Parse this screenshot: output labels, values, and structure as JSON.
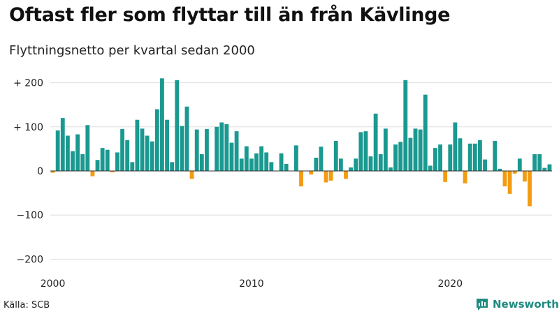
{
  "title": "Oftast fler som flyttar till än från Kävlinge",
  "subtitle": "Flyttningsnetto per kvartal sedan 2000",
  "source": "Källa: SCB",
  "brand": "Newsworthy",
  "colors": {
    "positive": "#1a9990",
    "negative": "#f39c12",
    "grid": "#dddddd",
    "zero": "#333333",
    "brand": "#1f8a80"
  },
  "chart_data": {
    "type": "bar",
    "title": "Oftast fler som flyttar till än från Kävlinge",
    "subtitle": "Flyttningsnetto per kvartal sedan 2000",
    "xlabel": "",
    "ylabel": "",
    "ylim": [
      -200,
      220
    ],
    "yticks": [
      200,
      100,
      0,
      -100,
      -200
    ],
    "ytick_labels": [
      "+ 200",
      "+ 100",
      "0",
      "−100",
      "−200"
    ],
    "xticks": [
      2000,
      2010,
      2020
    ],
    "xtick_labels": [
      "2000",
      "2010",
      "2020"
    ],
    "grid": true,
    "legend": "none",
    "categories": [
      "2000Q1",
      "2000Q2",
      "2000Q3",
      "2000Q4",
      "2001Q1",
      "2001Q2",
      "2001Q3",
      "2001Q4",
      "2002Q1",
      "2002Q2",
      "2002Q3",
      "2002Q4",
      "2003Q1",
      "2003Q2",
      "2003Q3",
      "2003Q4",
      "2004Q1",
      "2004Q2",
      "2004Q3",
      "2004Q4",
      "2005Q1",
      "2005Q2",
      "2005Q3",
      "2005Q4",
      "2006Q1",
      "2006Q2",
      "2006Q3",
      "2006Q4",
      "2007Q1",
      "2007Q2",
      "2007Q3",
      "2007Q4",
      "2008Q1",
      "2008Q2",
      "2008Q3",
      "2008Q4",
      "2009Q1",
      "2009Q2",
      "2009Q3",
      "2009Q4",
      "2010Q1",
      "2010Q2",
      "2010Q3",
      "2010Q4",
      "2011Q1",
      "2011Q2",
      "2011Q3",
      "2011Q4",
      "2012Q1",
      "2012Q2",
      "2012Q3",
      "2012Q4",
      "2013Q1",
      "2013Q2",
      "2013Q3",
      "2013Q4",
      "2014Q1",
      "2014Q2",
      "2014Q3",
      "2014Q4",
      "2015Q1",
      "2015Q2",
      "2015Q3",
      "2015Q4",
      "2016Q1",
      "2016Q2",
      "2016Q3",
      "2016Q4",
      "2017Q1",
      "2017Q2",
      "2017Q3",
      "2017Q4",
      "2018Q1",
      "2018Q2",
      "2018Q3",
      "2018Q4",
      "2019Q1",
      "2019Q2",
      "2019Q3",
      "2019Q4",
      "2020Q1",
      "2020Q2",
      "2020Q3",
      "2020Q4",
      "2021Q1",
      "2021Q2",
      "2021Q3",
      "2021Q4",
      "2022Q1",
      "2022Q2",
      "2022Q3",
      "2022Q4",
      "2023Q1",
      "2023Q2",
      "2023Q3",
      "2023Q4",
      "2024Q1",
      "2024Q2",
      "2024Q3",
      "2024Q4",
      "2025Q1"
    ],
    "values": [
      -4,
      92,
      120,
      80,
      45,
      83,
      38,
      104,
      -12,
      25,
      52,
      48,
      -3,
      42,
      95,
      70,
      20,
      116,
      96,
      80,
      67,
      140,
      210,
      116,
      20,
      206,
      102,
      146,
      -18,
      94,
      38,
      95,
      0,
      100,
      110,
      106,
      64,
      90,
      28,
      56,
      28,
      40,
      56,
      42,
      20,
      0,
      40,
      16,
      0,
      58,
      -35,
      0,
      -8,
      30,
      55,
      -26,
      -22,
      68,
      28,
      -18,
      8,
      28,
      88,
      90,
      33,
      130,
      38,
      96,
      8,
      60,
      66,
      206,
      75,
      96,
      94,
      173,
      12,
      52,
      60,
      -25,
      60,
      110,
      74,
      -28,
      62,
      62,
      70,
      26,
      0,
      68,
      5,
      -35,
      -52,
      -6,
      28,
      -24,
      -80,
      38,
      38,
      7,
      15
    ]
  }
}
